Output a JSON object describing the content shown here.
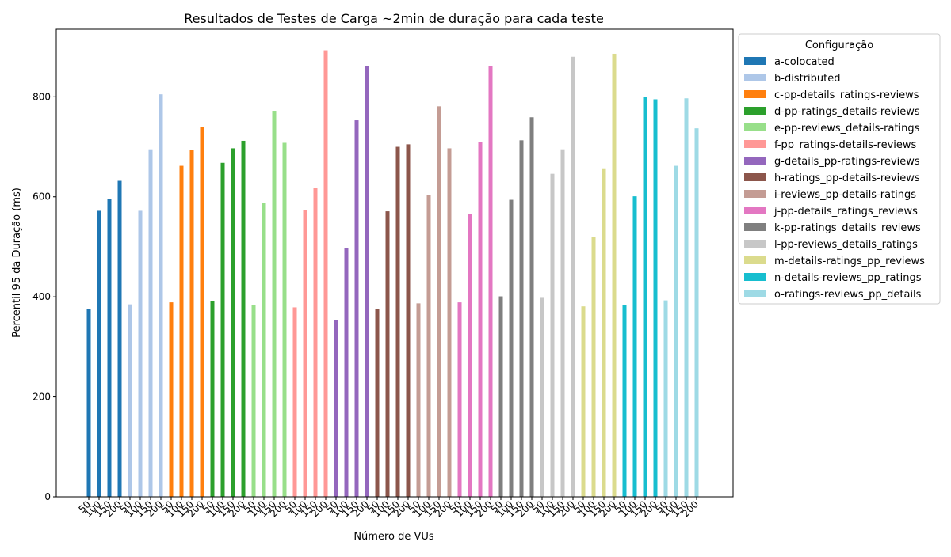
{
  "chart_data": {
    "type": "bar",
    "title": "Resultados de Testes de Carga ~2min de duração para cada teste",
    "xlabel": "Número de VUs",
    "ylabel": "Percentil 95 da Duração (ms)",
    "ylim": [
      0,
      935
    ],
    "yticks": [
      0,
      200,
      400,
      600,
      800
    ],
    "grid": false,
    "legend_title": "Configuração",
    "legend_position": "outside-right",
    "categories": [
      "50",
      "100",
      "150",
      "200"
    ],
    "series": [
      {
        "name": "a-colocated",
        "color": "#1f77b4",
        "values": [
          376,
          572,
          596,
          632
        ]
      },
      {
        "name": "b-distributed",
        "color": "#aec7e8",
        "values": [
          385,
          572,
          695,
          805
        ]
      },
      {
        "name": "c-pp-details_ratings-reviews",
        "color": "#ff7f0e",
        "values": [
          389,
          662,
          693,
          740
        ]
      },
      {
        "name": "d-pp-ratings_details-reviews",
        "color": "#2ca02c",
        "values": [
          392,
          668,
          697,
          712
        ]
      },
      {
        "name": "e-pp-reviews_details-ratings",
        "color": "#98df8a",
        "values": [
          383,
          587,
          772,
          708
        ]
      },
      {
        "name": "f-pp_ratings-details-reviews",
        "color": "#ff9896",
        "values": [
          379,
          573,
          618,
          893
        ]
      },
      {
        "name": "g-details_pp-ratings-reviews",
        "color": "#9467bd",
        "values": [
          354,
          498,
          753,
          862
        ]
      },
      {
        "name": "h-ratings_pp-details-reviews",
        "color": "#8c564b",
        "values": [
          375,
          571,
          700,
          705
        ]
      },
      {
        "name": "i-reviews_pp-details-ratings",
        "color": "#c49c94",
        "values": [
          387,
          603,
          781,
          697
        ]
      },
      {
        "name": "j-pp-details_ratings_reviews",
        "color": "#e377c2",
        "values": [
          389,
          565,
          709,
          862
        ]
      },
      {
        "name": "k-pp-ratings_details_reviews",
        "color": "#7f7f7f",
        "values": [
          401,
          594,
          713,
          759
        ]
      },
      {
        "name": "l-pp-reviews_details_ratings",
        "color": "#c7c7c7",
        "values": [
          398,
          646,
          695,
          880
        ]
      },
      {
        "name": "m-details-ratings_pp_reviews",
        "color": "#dbdb8d",
        "values": [
          381,
          519,
          657,
          886
        ]
      },
      {
        "name": "n-details-reviews_pp_ratings",
        "color": "#17becf",
        "values": [
          384,
          601,
          799,
          795
        ]
      },
      {
        "name": "o-ratings-reviews_pp_details",
        "color": "#9edae5",
        "values": [
          393,
          662,
          797,
          737
        ]
      }
    ]
  }
}
